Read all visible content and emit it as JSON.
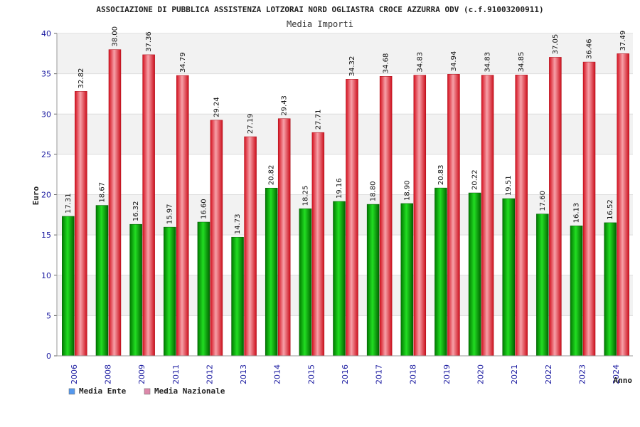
{
  "chart_data": {
    "type": "bar",
    "title": "ASSOCIAZIONE DI PUBBLICA ASSISTENZA LOTZORAI NORD OGLIASTRA CROCE AZZURRA ODV (c.f.91003200911)",
    "subtitle": "Media Importi",
    "xlabel": "Anno",
    "ylabel": "Euro",
    "ylim": [
      0,
      40
    ],
    "yticks": [
      0,
      5,
      10,
      15,
      20,
      25,
      30,
      35,
      40
    ],
    "ytick_labels": [
      "0",
      "5",
      "10",
      "15",
      "20",
      "25",
      "30",
      "35",
      "40"
    ],
    "categories": [
      "2006",
      "2008",
      "2009",
      "2011",
      "2012",
      "2013",
      "2014",
      "2015",
      "2016",
      "2017",
      "2018",
      "2019",
      "2020",
      "2021",
      "2022",
      "2023",
      "2024"
    ],
    "series": [
      {
        "name": "Media Ente",
        "color": "#00aa00",
        "values": [
          17.31,
          18.67,
          16.32,
          15.97,
          16.6,
          14.73,
          20.82,
          18.25,
          19.16,
          18.8,
          18.9,
          20.83,
          20.22,
          19.51,
          17.6,
          16.13,
          16.52
        ],
        "labels": [
          "17.31",
          "18.67",
          "16.32",
          "15.97",
          "16.60",
          "14.73",
          "20.82",
          "18.25",
          "19.16",
          "18.80",
          "18.90",
          "20.83",
          "20.22",
          "19.51",
          "17.60",
          "16.13",
          "16.52"
        ]
      },
      {
        "name": "Media Nazionale",
        "color": "#ee2233",
        "values": [
          32.82,
          38.0,
          37.36,
          34.79,
          29.24,
          27.19,
          29.43,
          27.71,
          34.32,
          34.68,
          34.83,
          34.94,
          34.83,
          34.85,
          37.05,
          36.46,
          37.49
        ],
        "labels": [
          "32.82",
          "38.00",
          "37.36",
          "34.79",
          "29.24",
          "27.19",
          "29.43",
          "27.71",
          "34.32",
          "34.68",
          "34.83",
          "34.94",
          "34.83",
          "34.85",
          "37.05",
          "36.46",
          "37.49"
        ]
      }
    ],
    "legend": [
      {
        "name": "Media Ente",
        "swatch": "#5599ee"
      },
      {
        "name": "Media Nazionale",
        "swatch": "#dd88aa"
      }
    ],
    "grid": true,
    "legend_position": "bottom-left"
  }
}
